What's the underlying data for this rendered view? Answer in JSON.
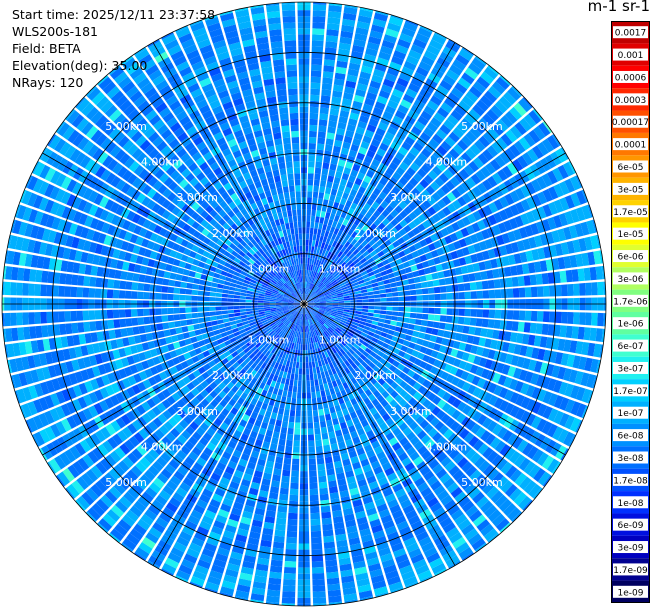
{
  "header": {
    "start_time": "Start time: 2025/12/11 23:37:58",
    "instrument": "WLS200s-181",
    "field": "Field: BETA",
    "elevation": "Elevation(deg): 35.00",
    "nrays": "NRays: 120"
  },
  "colorbar": {
    "title": "m-1 sr-1",
    "labels": [
      "0.0017",
      "0.001",
      "0.0006",
      "0.0003",
      "0.00017",
      "0.0001",
      "6e-05",
      "3e-05",
      "1.7e-05",
      "1e-05",
      "6e-06",
      "3e-06",
      "1.7e-06",
      "1e-06",
      "6e-07",
      "3e-07",
      "1.7e-07",
      "1e-07",
      "6e-08",
      "3e-08",
      "1.7e-08",
      "1e-08",
      "6e-09",
      "3e-09",
      "1.7e-09",
      "1e-09"
    ],
    "colors": [
      "#c00000",
      "#e00000",
      "#ff0000",
      "#ff2800",
      "#ff5000",
      "#ff7800",
      "#ff9600",
      "#ffb400",
      "#ffd200",
      "#ffff00",
      "#e0ff30",
      "#b0ff60",
      "#80ff80",
      "#60ffa0",
      "#40ffd0",
      "#20f0f0",
      "#00d0ff",
      "#00b0ff",
      "#0090ff",
      "#0070ff",
      "#0050ff",
      "#0030ff",
      "#0010e0",
      "#0000c0",
      "#000090",
      "#000060"
    ]
  },
  "chart_data": {
    "type": "heatmap",
    "projection": "polar-ppi",
    "field": "BETA",
    "elevation_deg": 35.0,
    "nrays": 120,
    "range_rings_km": [
      1.0,
      2.0,
      3.0,
      4.0,
      5.0
    ],
    "ring_labels": [
      "1.00km",
      "2.00km",
      "3.00km",
      "4.00km",
      "5.00km"
    ],
    "max_range_km": 6.0,
    "value_scale": "log",
    "value_range": [
      1e-09,
      0.0017
    ],
    "dominant_values_by_range_km": [
      {
        "range_km": 1.0,
        "beta": 3e-08
      },
      {
        "range_km": 2.0,
        "beta": 6e-08
      },
      {
        "range_km": 3.0,
        "beta": 6e-08
      },
      {
        "range_km": 4.0,
        "beta": 6e-08
      },
      {
        "range_km": 5.0,
        "beta": 6e-08
      },
      {
        "range_km": 6.0,
        "beta": 1e-07
      }
    ]
  }
}
